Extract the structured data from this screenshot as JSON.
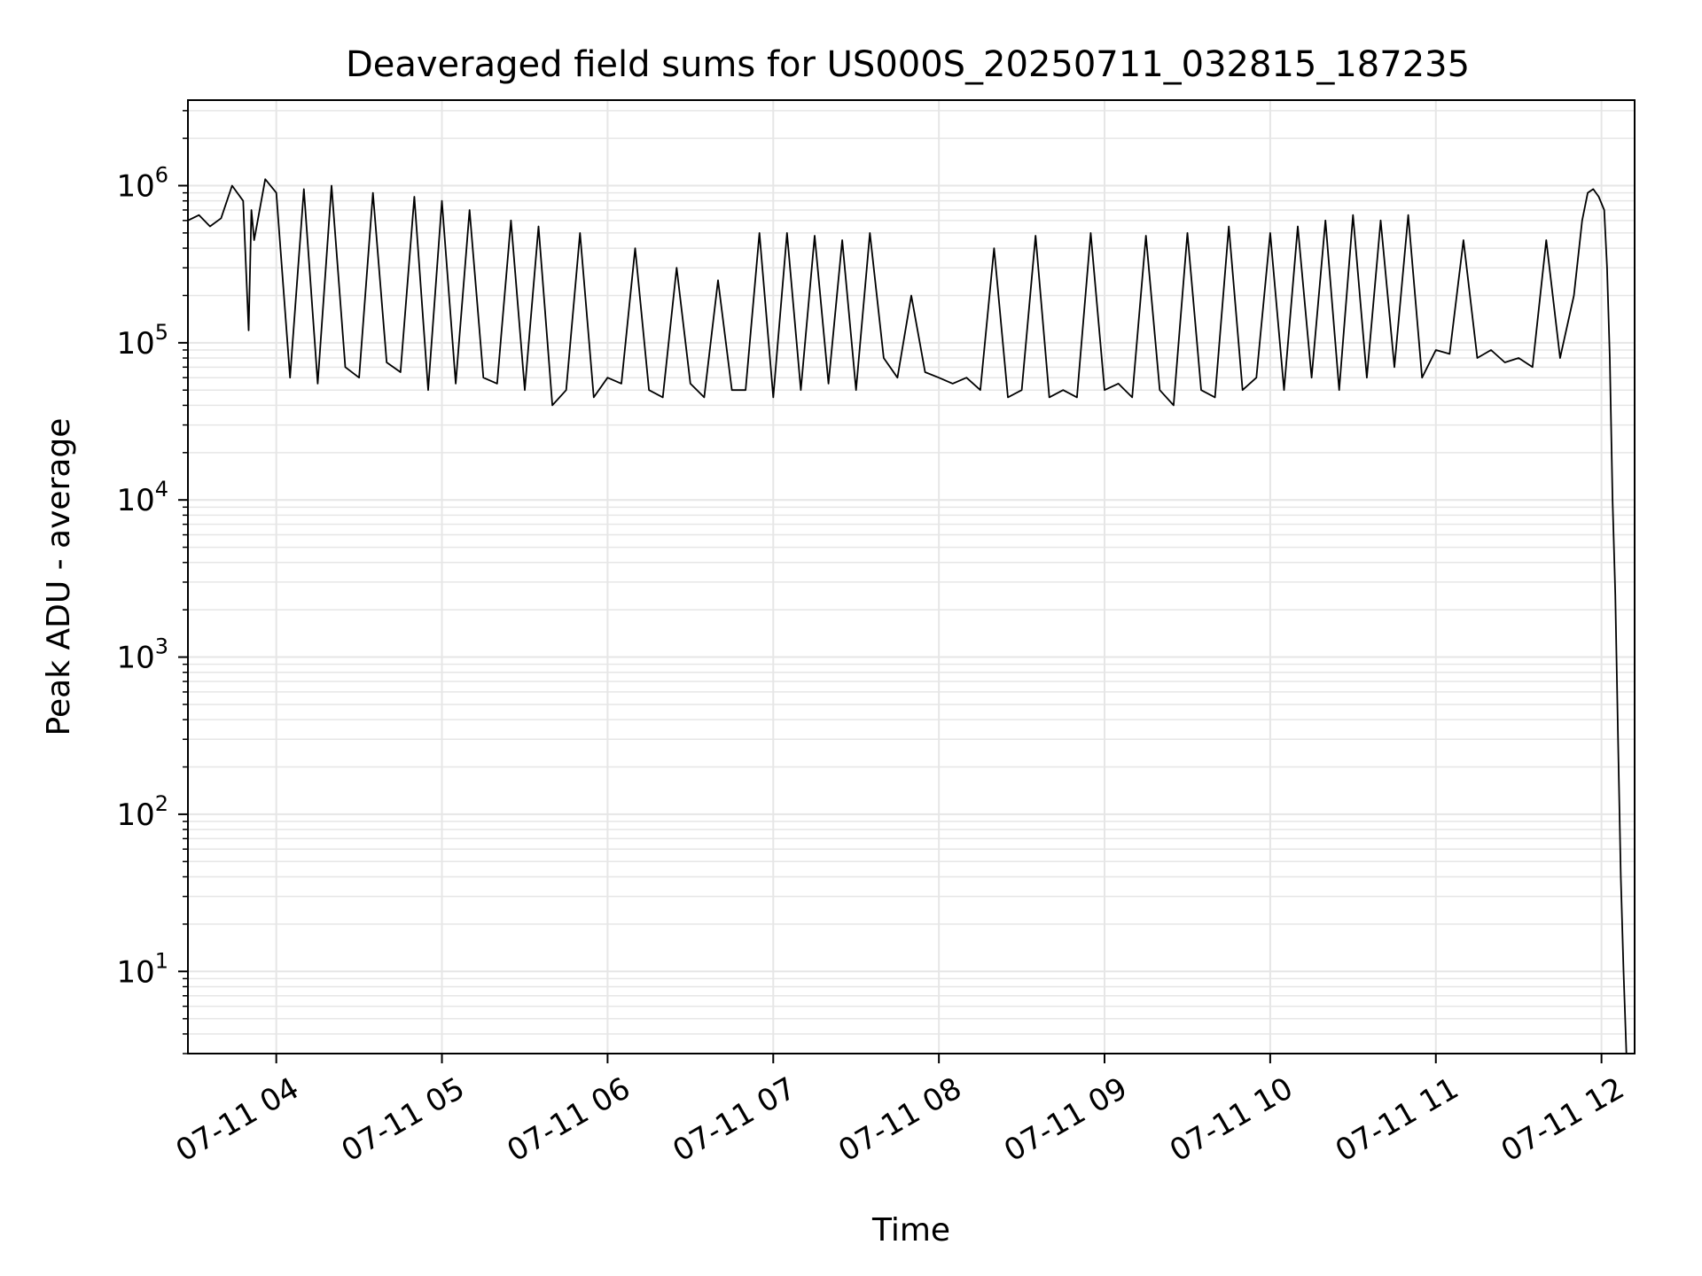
{
  "chart_data": {
    "type": "line",
    "title": "Deaveraged field sums for US000S_20250711_032815_187235",
    "xlabel": "Time",
    "ylabel": "Peak ADU - average",
    "yscale": "log",
    "ylim": [
      3,
      3500000
    ],
    "xlim": [
      "2025-07-11 03:28",
      "2025-07-11 12:12"
    ],
    "grid": true,
    "line_color": "#000000",
    "grid_color": "#e6e6e6",
    "x_ticks": [
      {
        "value": "2025-07-11 04:00",
        "label": "07-11 04"
      },
      {
        "value": "2025-07-11 05:00",
        "label": "07-11 05"
      },
      {
        "value": "2025-07-11 06:00",
        "label": "07-11 06"
      },
      {
        "value": "2025-07-11 07:00",
        "label": "07-11 07"
      },
      {
        "value": "2025-07-11 08:00",
        "label": "07-11 08"
      },
      {
        "value": "2025-07-11 09:00",
        "label": "07-11 09"
      },
      {
        "value": "2025-07-11 10:00",
        "label": "07-11 10"
      },
      {
        "value": "2025-07-11 11:00",
        "label": "07-11 11"
      },
      {
        "value": "2025-07-11 12:00",
        "label": "07-11 12"
      }
    ],
    "y_ticks": [
      {
        "value": 10,
        "base": "10",
        "exp": "1"
      },
      {
        "value": 100,
        "base": "10",
        "exp": "2"
      },
      {
        "value": 1000,
        "base": "10",
        "exp": "3"
      },
      {
        "value": 10000,
        "base": "10",
        "exp": "4"
      },
      {
        "value": 100000,
        "base": "10",
        "exp": "5"
      },
      {
        "value": 1000000,
        "base": "10",
        "exp": "6"
      }
    ],
    "series": [
      {
        "x": [
          "2025-07-11 03:28",
          "2025-07-11 03:32",
          "2025-07-11 03:36",
          "2025-07-11 03:40",
          "2025-07-11 03:44",
          "2025-07-11 03:48",
          "2025-07-11 03:50",
          "2025-07-11 03:51",
          "2025-07-11 03:52",
          "2025-07-11 03:56",
          "2025-07-11 04:00",
          "2025-07-11 04:05",
          "2025-07-11 04:10",
          "2025-07-11 04:15",
          "2025-07-11 04:20",
          "2025-07-11 04:25",
          "2025-07-11 04:30",
          "2025-07-11 04:35",
          "2025-07-11 04:40",
          "2025-07-11 04:45",
          "2025-07-11 04:50",
          "2025-07-11 04:55",
          "2025-07-11 05:00",
          "2025-07-11 05:05",
          "2025-07-11 05:10",
          "2025-07-11 05:15",
          "2025-07-11 05:20",
          "2025-07-11 05:25",
          "2025-07-11 05:30",
          "2025-07-11 05:35",
          "2025-07-11 05:40",
          "2025-07-11 05:45",
          "2025-07-11 05:50",
          "2025-07-11 05:55",
          "2025-07-11 06:00",
          "2025-07-11 06:05",
          "2025-07-11 06:10",
          "2025-07-11 06:15",
          "2025-07-11 06:20",
          "2025-07-11 06:25",
          "2025-07-11 06:30",
          "2025-07-11 06:35",
          "2025-07-11 06:40",
          "2025-07-11 06:45",
          "2025-07-11 06:50",
          "2025-07-11 06:55",
          "2025-07-11 07:00",
          "2025-07-11 07:05",
          "2025-07-11 07:10",
          "2025-07-11 07:15",
          "2025-07-11 07:20",
          "2025-07-11 07:25",
          "2025-07-11 07:30",
          "2025-07-11 07:35",
          "2025-07-11 07:40",
          "2025-07-11 07:45",
          "2025-07-11 07:50",
          "2025-07-11 07:55",
          "2025-07-11 08:00",
          "2025-07-11 08:05",
          "2025-07-11 08:10",
          "2025-07-11 08:15",
          "2025-07-11 08:20",
          "2025-07-11 08:25",
          "2025-07-11 08:30",
          "2025-07-11 08:35",
          "2025-07-11 08:40",
          "2025-07-11 08:45",
          "2025-07-11 08:50",
          "2025-07-11 08:55",
          "2025-07-11 09:00",
          "2025-07-11 09:05",
          "2025-07-11 09:10",
          "2025-07-11 09:15",
          "2025-07-11 09:20",
          "2025-07-11 09:25",
          "2025-07-11 09:30",
          "2025-07-11 09:35",
          "2025-07-11 09:40",
          "2025-07-11 09:45",
          "2025-07-11 09:50",
          "2025-07-11 09:55",
          "2025-07-11 10:00",
          "2025-07-11 10:05",
          "2025-07-11 10:10",
          "2025-07-11 10:15",
          "2025-07-11 10:20",
          "2025-07-11 10:25",
          "2025-07-11 10:30",
          "2025-07-11 10:35",
          "2025-07-11 10:40",
          "2025-07-11 10:45",
          "2025-07-11 10:50",
          "2025-07-11 10:55",
          "2025-07-11 11:00",
          "2025-07-11 11:05",
          "2025-07-11 11:10",
          "2025-07-11 11:15",
          "2025-07-11 11:20",
          "2025-07-11 11:25",
          "2025-07-11 11:30",
          "2025-07-11 11:35",
          "2025-07-11 11:40",
          "2025-07-11 11:45",
          "2025-07-11 11:50",
          "2025-07-11 11:53",
          "2025-07-11 11:55",
          "2025-07-11 11:57",
          "2025-07-11 11:59",
          "2025-07-11 12:01",
          "2025-07-11 12:02",
          "2025-07-11 12:03",
          "2025-07-11 12:04",
          "2025-07-11 12:05",
          "2025-07-11 12:06",
          "2025-07-11 12:07",
          "2025-07-11 12:08",
          "2025-07-11 12:09"
        ],
        "y": [
          600000,
          650000,
          550000,
          620000,
          1000000,
          800000,
          120000,
          700000,
          450000,
          1100000,
          900000,
          60000,
          950000,
          55000,
          1000000,
          70000,
          60000,
          900000,
          75000,
          65000,
          850000,
          50000,
          800000,
          55000,
          700000,
          60000,
          55000,
          600000,
          50000,
          550000,
          40000,
          50000,
          500000,
          45000,
          60000,
          55000,
          400000,
          50000,
          45000,
          300000,
          55000,
          45000,
          250000,
          50000,
          50000,
          500000,
          45000,
          500000,
          50000,
          480000,
          55000,
          450000,
          50000,
          500000,
          80000,
          60000,
          200000,
          65000,
          60000,
          55000,
          60000,
          50000,
          400000,
          45000,
          50000,
          480000,
          45000,
          50000,
          45000,
          500000,
          50000,
          55000,
          45000,
          480000,
          50000,
          40000,
          500000,
          50000,
          45000,
          550000,
          50000,
          60000,
          500000,
          50000,
          550000,
          60000,
          600000,
          50000,
          650000,
          60000,
          600000,
          70000,
          650000,
          60000,
          90000,
          85000,
          450000,
          80000,
          90000,
          75000,
          80000,
          70000,
          450000,
          80000,
          200000,
          600000,
          900000,
          950000,
          850000,
          700000,
          300000,
          80000,
          10000,
          2500,
          300,
          40,
          10,
          3
        ]
      }
    ]
  }
}
